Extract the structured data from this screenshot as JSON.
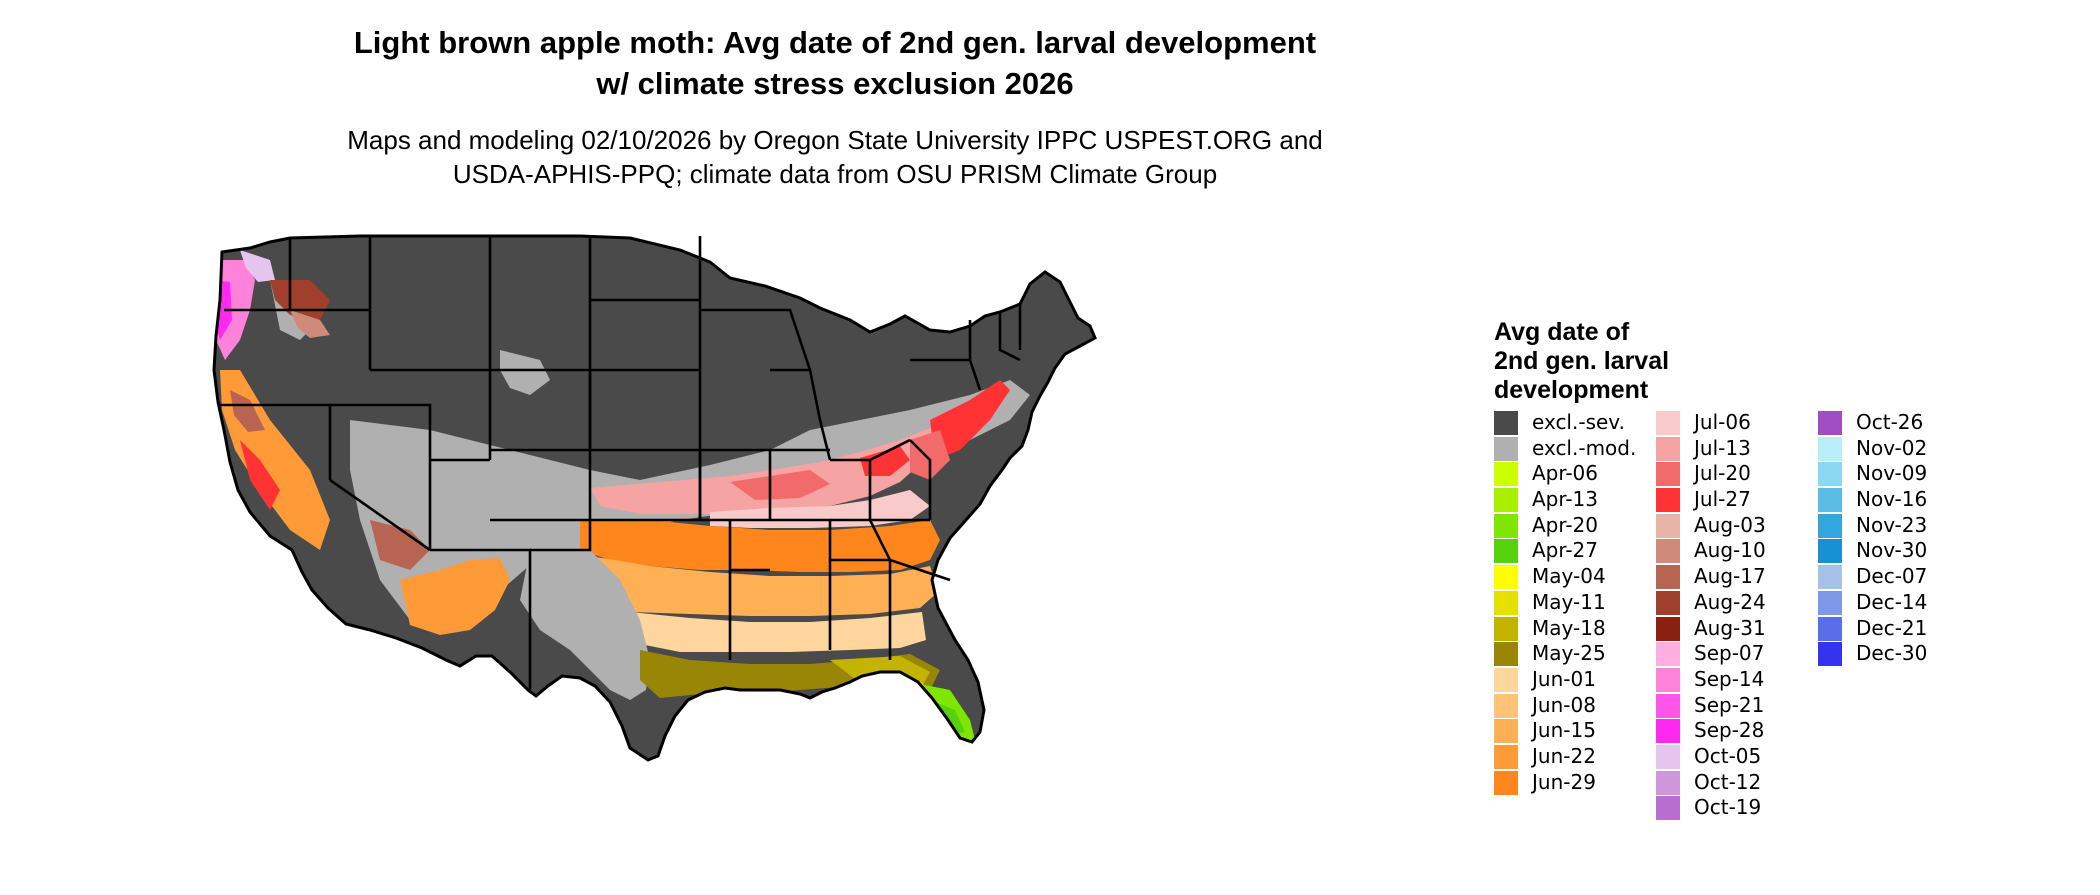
{
  "title_line1": "Light brown apple moth: Avg date of 2nd gen. larval development",
  "title_line2": "w/ climate stress exclusion 2026",
  "subtitle_line1": "Maps and modeling 02/10/2026 by Oregon State University IPPC USPEST.ORG and",
  "subtitle_line2": "USDA-APHIS-PPQ; climate data from OSU PRISM Climate Group",
  "legend": {
    "title_lines": [
      "Avg date of",
      "2nd gen. larval",
      "development"
    ],
    "items": [
      {
        "label": "excl.-sev.",
        "color": "#4a4a4a"
      },
      {
        "label": "excl.-mod.",
        "color": "#b0b0b0"
      },
      {
        "label": "Apr-06",
        "color": "#ccff00"
      },
      {
        "label": "Apr-13",
        "color": "#a8f000"
      },
      {
        "label": "Apr-20",
        "color": "#7fe600"
      },
      {
        "label": "Apr-27",
        "color": "#55d10f"
      },
      {
        "label": "May-04",
        "color": "#ffff00"
      },
      {
        "label": "May-11",
        "color": "#e6e000"
      },
      {
        "label": "May-18",
        "color": "#c2b400"
      },
      {
        "label": "May-25",
        "color": "#9a8606"
      },
      {
        "label": "Jun-01",
        "color": "#ffd59e"
      },
      {
        "label": "Jun-08",
        "color": "#ffc478"
      },
      {
        "label": "Jun-15",
        "color": "#ffb055"
      },
      {
        "label": "Jun-22",
        "color": "#ff9a38"
      },
      {
        "label": "Jun-29",
        "color": "#ff861c"
      },
      {
        "label": "Jul-06",
        "color": "#f8caca"
      },
      {
        "label": "Jul-13",
        "color": "#f5a3a3"
      },
      {
        "label": "Jul-20",
        "color": "#f26b6b"
      },
      {
        "label": "Jul-27",
        "color": "#ff3333"
      },
      {
        "label": "Aug-03",
        "color": "#e8b4a8"
      },
      {
        "label": "Aug-10",
        "color": "#cf8a7a"
      },
      {
        "label": "Aug-17",
        "color": "#b76552"
      },
      {
        "label": "Aug-24",
        "color": "#a0402c"
      },
      {
        "label": "Aug-31",
        "color": "#8a2010"
      },
      {
        "label": "Sep-07",
        "color": "#ffaee0"
      },
      {
        "label": "Sep-14",
        "color": "#ff82da"
      },
      {
        "label": "Sep-21",
        "color": "#ff55e8"
      },
      {
        "label": "Sep-28",
        "color": "#ff28f0"
      },
      {
        "label": "Oct-05",
        "color": "#e5c5ee"
      },
      {
        "label": "Oct-12",
        "color": "#cf96dc"
      },
      {
        "label": "Oct-19",
        "color": "#b86dd0"
      },
      {
        "label": "Oct-26",
        "color": "#a04ec4"
      },
      {
        "label": "Nov-02",
        "color": "#b9eefc"
      },
      {
        "label": "Nov-09",
        "color": "#8ad8f2"
      },
      {
        "label": "Nov-16",
        "color": "#5bbde6"
      },
      {
        "label": "Nov-23",
        "color": "#33a6dd"
      },
      {
        "label": "Nov-30",
        "color": "#1791d3"
      },
      {
        "label": "Dec-07",
        "color": "#a6c0e8"
      },
      {
        "label": "Dec-14",
        "color": "#7c98e6"
      },
      {
        "label": "Dec-21",
        "color": "#5a6ee8"
      },
      {
        "label": "Dec-30",
        "color": "#3333f0"
      }
    ]
  }
}
